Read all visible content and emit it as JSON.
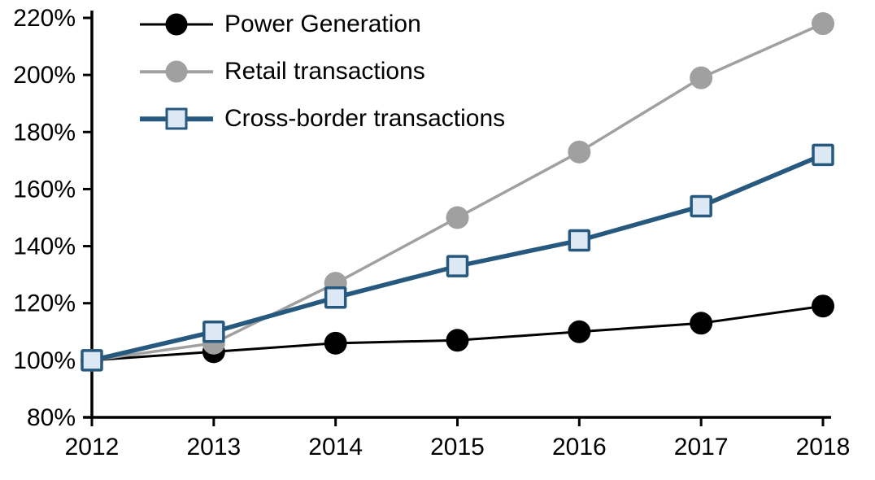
{
  "chart_data": {
    "type": "line",
    "title": "",
    "x_label": "",
    "y_label": "",
    "categories": [
      "2012",
      "2013",
      "2014",
      "2015",
      "2016",
      "2017",
      "2018"
    ],
    "y_ticks": [
      80,
      100,
      120,
      140,
      160,
      180,
      200,
      220
    ],
    "y_tick_labels": [
      "80%",
      "100%",
      "120%",
      "140%",
      "160%",
      "180%",
      "200%",
      "220%"
    ],
    "ylim": [
      80,
      220
    ],
    "y_unit": "%",
    "grid": false,
    "legend_position": "top-left",
    "axis_color": "#000000",
    "series": [
      {
        "name": "Power Generation",
        "values": [
          100,
          103,
          106,
          107,
          110,
          113,
          119
        ],
        "color": "#000000",
        "marker": "circle",
        "marker_fill": "#000000",
        "line_width": 3
      },
      {
        "name": "Retail transactions",
        "values": [
          100,
          106,
          127,
          150,
          173,
          199,
          218
        ],
        "color": "#A0A0A0",
        "marker": "circle",
        "marker_fill": "#A0A0A0",
        "line_width": 3.5
      },
      {
        "name": "Cross-border transactions",
        "values": [
          100,
          110,
          122,
          133,
          142,
          154,
          172
        ],
        "color": "#27597F",
        "marker": "square",
        "marker_fill": "#DCE8F4",
        "line_width": 5.5
      }
    ]
  }
}
